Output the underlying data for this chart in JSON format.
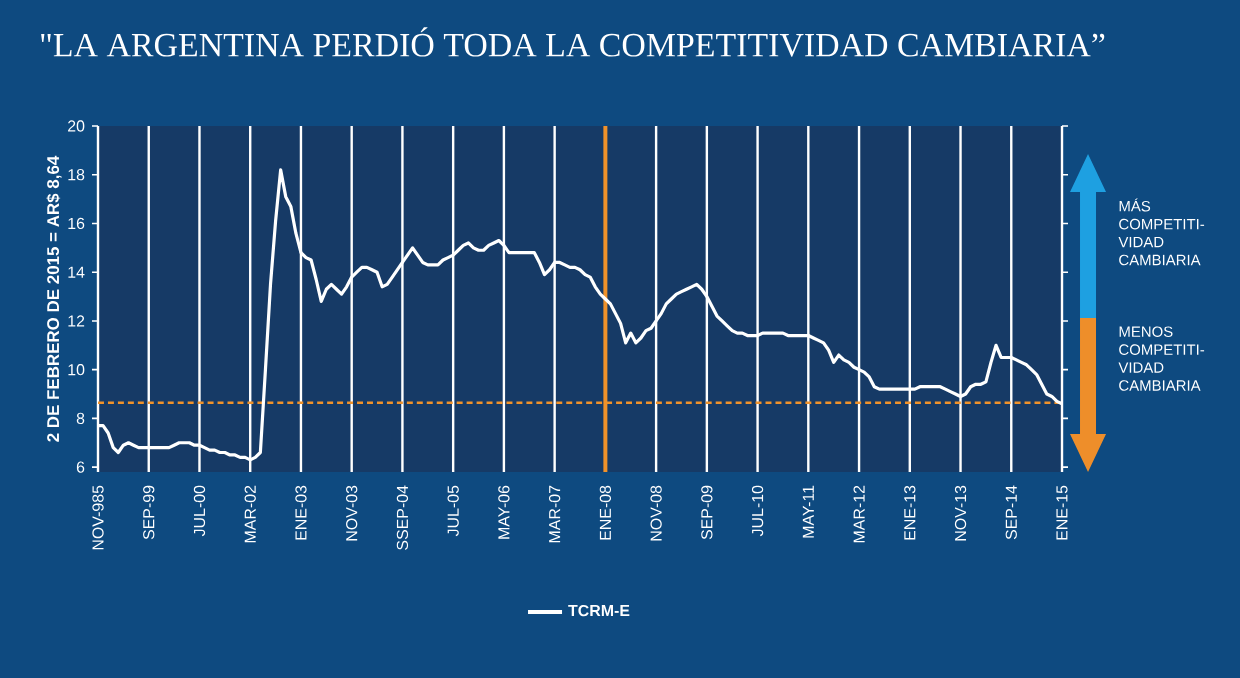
{
  "chart_data": {
    "type": "line",
    "title": "\"LA ARGENTINA PERDIÓ TODA LA COMPETITIVIDAD CAMBIARIA”",
    "ylabel": "2 DE FEBRERO DE 2015 = AR$ 8,64",
    "annotations": [
      "MÁS COMPETITI-VIDAD CAMBIARIA",
      "MENOS COMPETITI-VIDAD CAMBIARIA"
    ],
    "ylim": [
      5.8,
      20
    ],
    "yticks": [
      6,
      8,
      10,
      12,
      14,
      16,
      18,
      20
    ],
    "categories": [
      "NOV-985",
      null,
      null,
      null,
      null,
      null,
      null,
      null,
      null,
      null,
      "SEP-99",
      null,
      null,
      null,
      null,
      null,
      null,
      null,
      null,
      null,
      "JUL-00",
      null,
      null,
      null,
      null,
      null,
      null,
      null,
      null,
      null,
      "MAR-02",
      null,
      null,
      null,
      null,
      null,
      null,
      null,
      null,
      null,
      "ENE-03",
      null,
      null,
      null,
      null,
      null,
      null,
      null,
      null,
      null,
      "NOV-03",
      null,
      null,
      null,
      null,
      null,
      null,
      null,
      null,
      null,
      "SSEP-04",
      null,
      null,
      null,
      null,
      null,
      null,
      null,
      null,
      null,
      "JUL-05",
      null,
      null,
      null,
      null,
      null,
      null,
      null,
      null,
      null,
      "MAY-06",
      null,
      null,
      null,
      null,
      null,
      null,
      null,
      null,
      null,
      "MAR-07",
      null,
      null,
      null,
      null,
      null,
      null,
      null,
      null,
      null,
      "ENE-08",
      null,
      null,
      null,
      null,
      null,
      null,
      null,
      null,
      null,
      "NOV-08",
      null,
      null,
      null,
      null,
      null,
      null,
      null,
      null,
      null,
      "SEP-09",
      null,
      null,
      null,
      null,
      null,
      null,
      null,
      null,
      null,
      "JUL-10",
      null,
      null,
      null,
      null,
      null,
      null,
      null,
      null,
      null,
      "MAY-11",
      null,
      null,
      null,
      null,
      null,
      null,
      null,
      null,
      null,
      "MAR-12",
      null,
      null,
      null,
      null,
      null,
      null,
      null,
      null,
      null,
      "ENE-13",
      null,
      null,
      null,
      null,
      null,
      null,
      null,
      null,
      null,
      "NOV-13",
      null,
      null,
      null,
      null,
      null,
      null,
      null,
      null,
      null,
      "SEP-14",
      null,
      null,
      null,
      null,
      null,
      null,
      null,
      null,
      null,
      "ENE-15"
    ],
    "series": [
      {
        "name": "TCRM-E",
        "color": "#ffffff",
        "values": [
          7.7,
          7.7,
          7.4,
          6.8,
          6.6,
          6.9,
          7.0,
          6.9,
          6.8,
          6.8,
          6.8,
          6.8,
          6.8,
          6.8,
          6.8,
          6.9,
          7.0,
          7.0,
          7.0,
          6.9,
          6.9,
          6.8,
          6.7,
          6.7,
          6.6,
          6.6,
          6.5,
          6.5,
          6.4,
          6.4,
          6.3,
          6.4,
          6.6,
          10.0,
          13.5,
          16.1,
          18.2,
          17.1,
          16.7,
          15.6,
          14.8,
          14.6,
          14.5,
          13.7,
          12.8,
          13.3,
          13.5,
          13.3,
          13.1,
          13.4,
          13.8,
          14.0,
          14.2,
          14.2,
          14.1,
          14.0,
          13.4,
          13.5,
          13.8,
          14.1,
          14.4,
          14.7,
          15.0,
          14.7,
          14.4,
          14.3,
          14.3,
          14.3,
          14.5,
          14.6,
          14.7,
          14.9,
          15.1,
          15.2,
          15.0,
          14.9,
          14.9,
          15.1,
          15.2,
          15.3,
          15.1,
          14.8,
          14.8,
          14.8,
          14.8,
          14.8,
          14.8,
          14.4,
          13.9,
          14.1,
          14.4,
          14.4,
          14.3,
          14.2,
          14.2,
          14.1,
          13.9,
          13.8,
          13.4,
          13.1,
          12.9,
          12.7,
          12.3,
          11.9,
          11.1,
          11.5,
          11.1,
          11.3,
          11.6,
          11.7,
          12.0,
          12.3,
          12.7,
          12.9,
          13.1,
          13.2,
          13.3,
          13.4,
          13.5,
          13.3,
          13.0,
          12.6,
          12.2,
          12.0,
          11.8,
          11.6,
          11.5,
          11.5,
          11.4,
          11.4,
          11.4,
          11.5,
          11.5,
          11.5,
          11.5,
          11.5,
          11.4,
          11.4,
          11.4,
          11.4,
          11.4,
          11.3,
          11.2,
          11.1,
          10.8,
          10.3,
          10.6,
          10.4,
          10.3,
          10.1,
          10.0,
          9.9,
          9.7,
          9.3,
          9.2,
          9.2,
          9.2,
          9.2,
          9.2,
          9.2,
          9.2,
          9.2,
          9.3,
          9.3,
          9.3,
          9.3,
          9.3,
          9.2,
          9.1,
          9.0,
          8.9,
          9.0,
          9.3,
          9.4,
          9.4,
          9.5,
          10.3,
          11.0,
          10.5,
          10.5,
          10.5,
          10.4,
          10.3,
          10.2,
          10.0,
          9.8,
          9.4,
          9.0,
          8.9,
          8.7,
          8.6
        ]
      }
    ],
    "ref_lines": [
      {
        "axis": "y",
        "value": 8.64,
        "color": "#f0922a",
        "line_style": "dashed"
      },
      {
        "axis": "x",
        "value": "ENE-08",
        "color": "#f0922a",
        "line_style": "solid"
      }
    ],
    "grid": "x",
    "legend": "bottom",
    "marker": "none",
    "line_style": "solid"
  }
}
